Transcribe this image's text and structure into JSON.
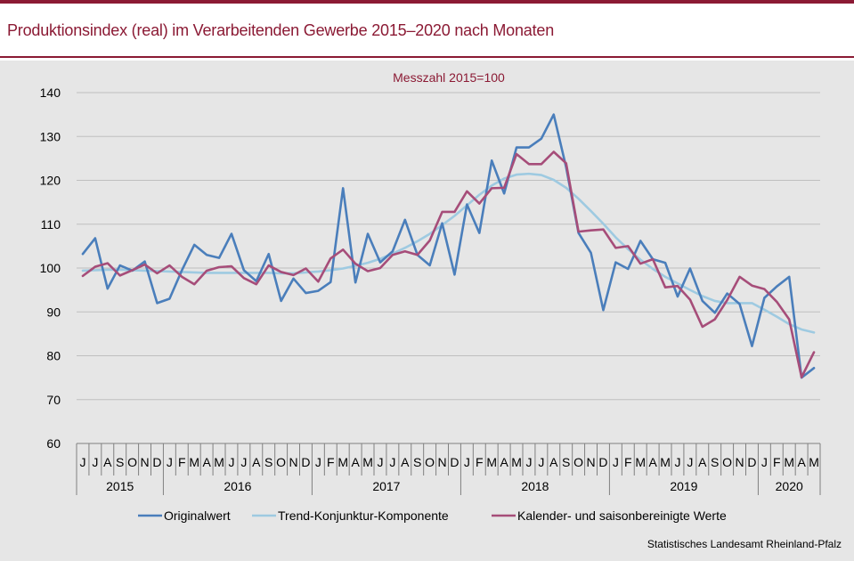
{
  "header": {
    "title": "Produktionsindex (real) im Verarbeitenden Gewerbe 2015–2020 nach Monaten"
  },
  "footer": {
    "source": "Statistisches Landesamt  Rheinland-Pfalz"
  },
  "colors": {
    "brand": "#8b1a34",
    "panel": "#e6e6e6",
    "grid": "#bfbfbf"
  },
  "chart_data": {
    "type": "line",
    "title": "Messzahl 2015=100",
    "xlabel": "",
    "ylabel": "",
    "ylim": [
      60,
      140
    ],
    "yticks": [
      60,
      70,
      80,
      90,
      100,
      110,
      120,
      130,
      140
    ],
    "grid": true,
    "legend_position": "bottom",
    "month_labels": [
      "J",
      "J",
      "A",
      "S",
      "O",
      "N",
      "D",
      "J",
      "F",
      "M",
      "A",
      "M",
      "J",
      "J",
      "A",
      "S",
      "O",
      "N",
      "D",
      "J",
      "F",
      "M",
      "A",
      "M",
      "J",
      "J",
      "A",
      "S",
      "O",
      "N",
      "D",
      "J",
      "F",
      "M",
      "A",
      "M",
      "J",
      "J",
      "A",
      "S",
      "O",
      "N",
      "D",
      "J",
      "F",
      "M",
      "A",
      "M",
      "J",
      "J",
      "A",
      "S",
      "O",
      "N",
      "D",
      "J",
      "F",
      "M",
      "A",
      "M"
    ],
    "year_groups": [
      {
        "label": "2015",
        "months": 7
      },
      {
        "label": "2016",
        "months": 12
      },
      {
        "label": "2017",
        "months": 12
      },
      {
        "label": "2018",
        "months": 12
      },
      {
        "label": "2019",
        "months": 12
      },
      {
        "label": "2020",
        "months": 5
      }
    ],
    "series": [
      {
        "name": "Originalwert",
        "color": "#4a7ebb",
        "values": [
          103.2,
          106.8,
          95.3,
          100.6,
          99.4,
          101.5,
          92.0,
          93.0,
          99.5,
          105.3,
          103.0,
          102.3,
          107.8,
          99.5,
          97.0,
          103.2,
          92.5,
          97.6,
          94.3,
          94.8,
          96.8,
          118.2,
          96.7,
          107.8,
          101.3,
          103.8,
          111.0,
          103.0,
          100.6,
          110.2,
          98.5,
          114.5,
          108.0,
          124.5,
          117.0,
          127.5,
          127.5,
          129.5,
          135.0,
          123.0,
          108.0,
          103.5,
          90.4,
          101.3,
          99.8,
          106.2,
          102.0,
          101.2,
          93.5,
          99.9,
          92.5,
          89.8,
          94.2,
          91.8,
          82.2,
          93.2,
          95.8,
          98.0,
          75.0,
          77.2
        ]
      },
      {
        "name": "Trend-Konjunktur-Komponente",
        "color": "#9ecae1",
        "values": [
          99.4,
          99.5,
          99.6,
          99.6,
          99.5,
          99.4,
          99.3,
          99.2,
          99.1,
          99.0,
          98.9,
          98.9,
          98.9,
          98.9,
          98.9,
          98.9,
          98.8,
          98.8,
          99.0,
          99.2,
          99.5,
          99.9,
          100.5,
          101.2,
          102.1,
          103.3,
          104.6,
          106.1,
          107.8,
          109.8,
          111.9,
          114.3,
          116.7,
          118.8,
          120.4,
          121.3,
          121.5,
          121.2,
          120.1,
          118.3,
          115.8,
          113.0,
          110.1,
          107.0,
          104.3,
          101.9,
          99.8,
          98.0,
          96.5,
          95.0,
          93.6,
          92.5,
          92.0,
          92.0,
          92.0,
          90.5,
          88.9,
          87.2,
          86.0,
          85.3
        ]
      },
      {
        "name": "Kalender- und saisonbereinigte Werte",
        "color": "#a64d79",
        "values": [
          98.2,
          100.3,
          101.1,
          98.3,
          99.5,
          100.8,
          98.8,
          100.6,
          98.0,
          96.3,
          99.4,
          100.2,
          100.4,
          97.7,
          96.3,
          100.6,
          99.1,
          98.4,
          99.9,
          96.9,
          102.2,
          104.2,
          101.0,
          99.3,
          100.0,
          103.0,
          103.8,
          103.0,
          106.3,
          112.8,
          112.8,
          117.5,
          114.7,
          118.2,
          118.3,
          126.0,
          123.7,
          123.7,
          126.5,
          123.9,
          108.3,
          108.6,
          108.8,
          104.6,
          105.0,
          101.0,
          102.0,
          95.6,
          95.9,
          92.8,
          86.6,
          88.3,
          92.7,
          98.0,
          96.0,
          95.2,
          92.3,
          88.3,
          75.1,
          80.8
        ]
      }
    ]
  }
}
